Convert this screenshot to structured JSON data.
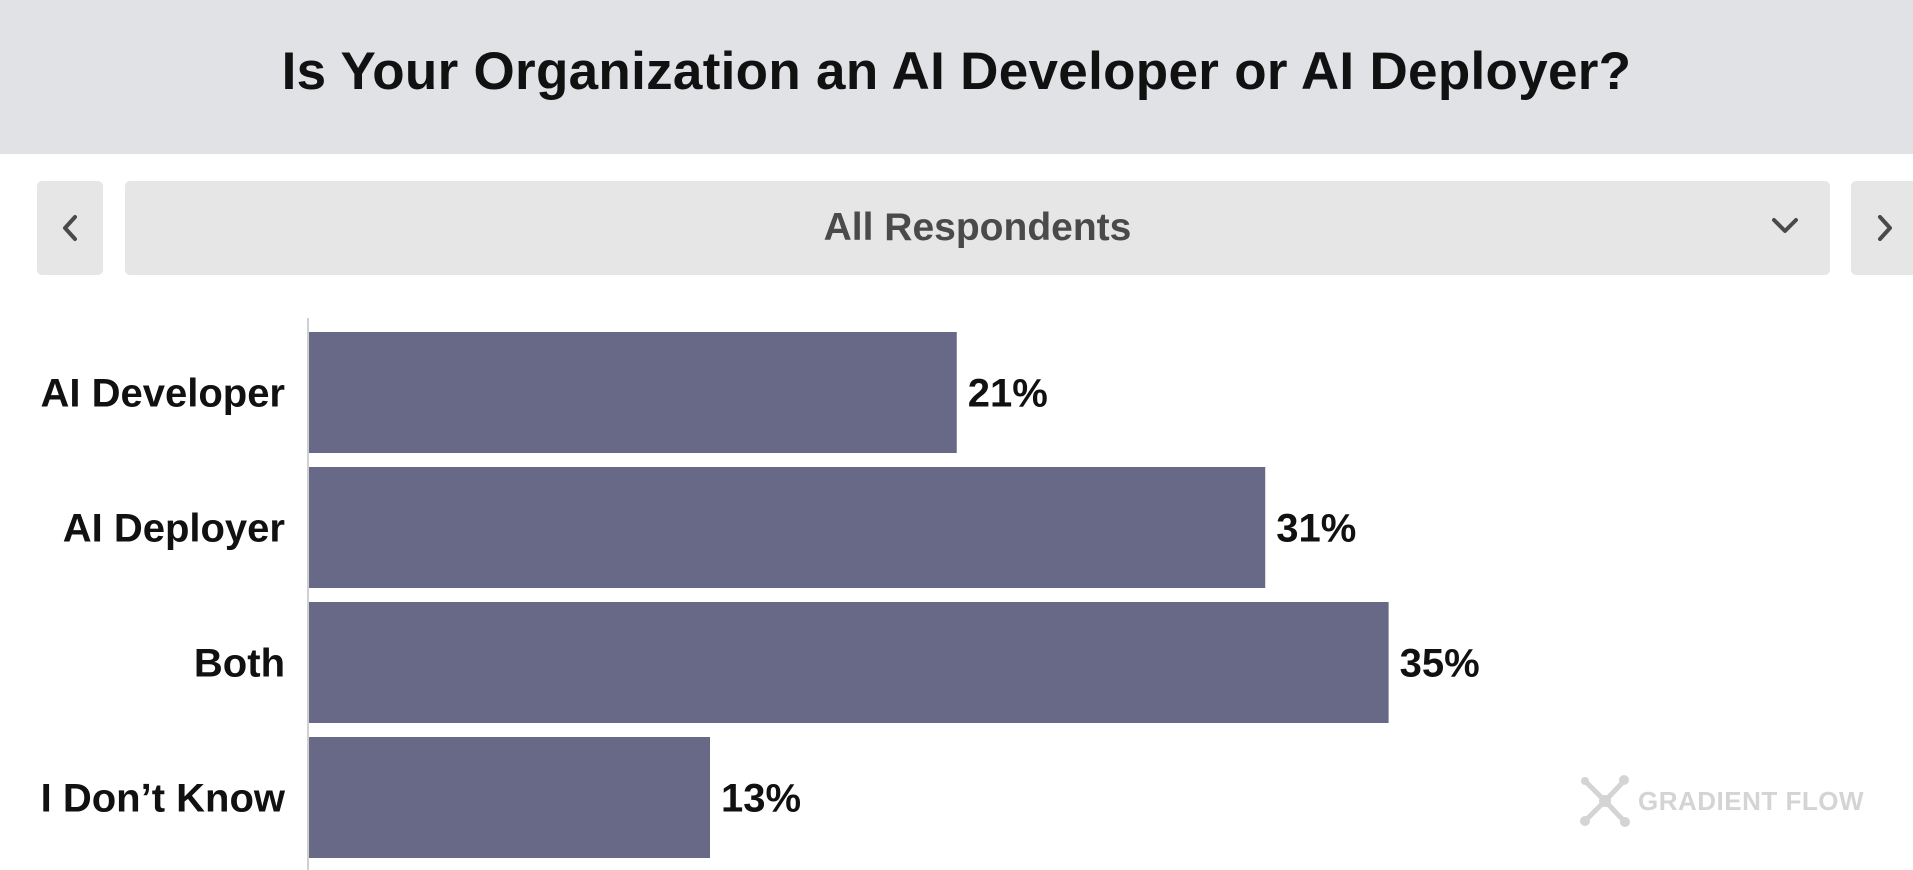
{
  "header": {
    "title": "Is Your Organization an AI Developer or AI Deployer?"
  },
  "filter": {
    "selected": "All Respondents",
    "prev_icon": "chevron-left-icon",
    "next_icon": "chevron-right-icon",
    "dropdown_icon": "chevron-down-icon"
  },
  "watermark": {
    "text": "GRADIENT FLOW",
    "icon": "network-icon"
  },
  "colors": {
    "bar": "#676986",
    "header_bg": "#e1e2e6",
    "control_bg": "#e6e6e6"
  },
  "chart_data": {
    "type": "bar",
    "orientation": "horizontal",
    "categories": [
      "AI Developer",
      "AI Deployer",
      "Both",
      "I Don’t Know"
    ],
    "values": [
      21,
      31,
      35,
      13
    ],
    "value_suffix": "%",
    "xlim": [
      0,
      52
    ],
    "grid": false
  }
}
